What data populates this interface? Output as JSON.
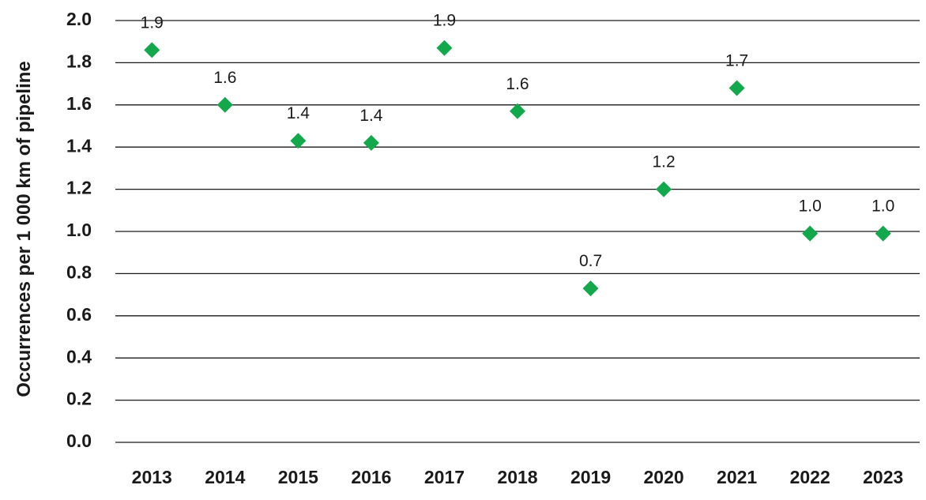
{
  "chart_data": {
    "type": "scatter",
    "title": "",
    "xlabel": "",
    "ylabel": "Occurrences per 1 000 km of pipeline",
    "ylim": [
      0,
      2.0
    ],
    "yticks": [
      "0.0",
      "0.2",
      "0.4",
      "0.6",
      "0.8",
      "1.0",
      "1.2",
      "1.4",
      "1.6",
      "1.8",
      "2.0"
    ],
    "grid": true,
    "legend": "none",
    "marker": "diamond",
    "color": "#12a84b",
    "categories": [
      "2013",
      "2014",
      "2015",
      "2016",
      "2017",
      "2018",
      "2019",
      "2020",
      "2021",
      "2022",
      "2023"
    ],
    "values": [
      1.86,
      1.6,
      1.43,
      1.42,
      1.87,
      1.57,
      0.73,
      1.2,
      1.68,
      0.99,
      0.99
    ],
    "data_labels": [
      "1.9",
      "1.6",
      "1.4",
      "1.4",
      "1.9",
      "1.6",
      "0.7",
      "1.2",
      "1.7",
      "1.0",
      "1.0"
    ]
  }
}
